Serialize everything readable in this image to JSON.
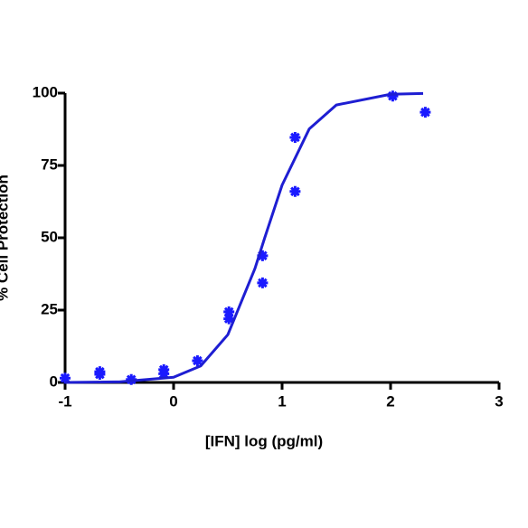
{
  "chart_data": {
    "type": "scatter",
    "xlabel": "[IFN] log (pg/ml)",
    "ylabel": "% Cell Protection",
    "xlim": [
      -1,
      3
    ],
    "xticks": [
      -1,
      0,
      1,
      2,
      3
    ],
    "ylim": [
      0,
      100
    ],
    "yticks": [
      0,
      25,
      50,
      75,
      100
    ],
    "series": [
      {
        "mark": "marker",
        "color": "#1a1aff",
        "x": [
          -1,
          -0.68,
          -0.68,
          -0.39,
          -0.09,
          -0.09,
          0.22,
          0.51,
          0.51,
          0.82,
          0.82,
          1.12,
          1.12,
          2.02,
          2.32
        ],
        "values": [
          1.5,
          3.7,
          2.8,
          1,
          4.4,
          3,
          7.5,
          24.4,
          22,
          43.8,
          34.4,
          84.7,
          66,
          99,
          93.4
        ]
      },
      {
        "mark": "line",
        "color": "#1e1ed2",
        "x": [
          -1,
          -0.5,
          0,
          0.25,
          0.5,
          0.75,
          0.84,
          1,
          1.25,
          1.5,
          2,
          2.3
        ],
        "values": [
          0,
          0.2,
          1.8,
          5.7,
          16.5,
          39.4,
          50,
          68.2,
          87.6,
          95.9,
          99.6,
          99.9
        ]
      }
    ]
  }
}
